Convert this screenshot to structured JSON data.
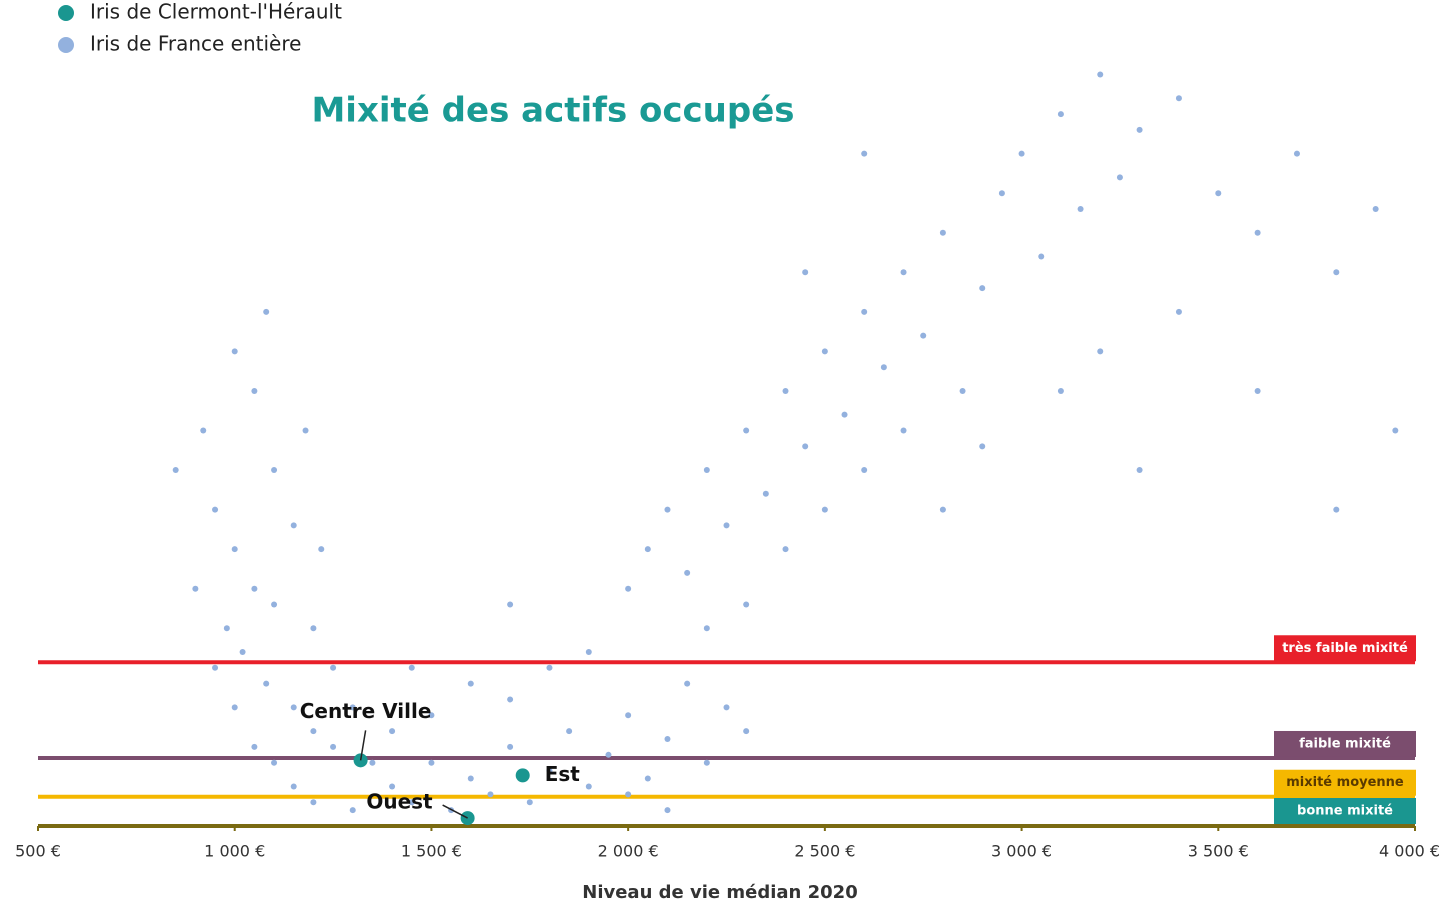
{
  "chart_data": {
    "type": "scatter",
    "title": "Mixité des actifs occupés",
    "x_label": "Niveau de vie médian 2020",
    "xlim": [
      500,
      4000
    ],
    "ylim": [
      0,
      100
    ],
    "xticks": [
      {
        "value": 500,
        "label": "500 €"
      },
      {
        "value": 1000,
        "label": "1 000 €"
      },
      {
        "value": 1500,
        "label": "1 500 €"
      },
      {
        "value": 2000,
        "label": "2 000 €"
      },
      {
        "value": 2500,
        "label": "2 500 €"
      },
      {
        "value": 3000,
        "label": "3 000 €"
      },
      {
        "value": 3500,
        "label": "3 500 €"
      },
      {
        "value": 4000,
        "label": "4 000 €"
      }
    ],
    "legend": "top-left",
    "series": [
      {
        "name": "Iris de France entière",
        "color": "#93b1de",
        "x": [
          950,
          1000,
          1050,
          1100,
          980,
          1020,
          1080,
          1150,
          1200,
          1250,
          1000,
          1050,
          1100,
          1150,
          1200,
          1300,
          1100,
          1050,
          1000,
          1150,
          1200,
          900,
          950,
          1250,
          1300,
          850,
          920,
          1180,
          1220,
          1080,
          1400,
          1450,
          1500,
          1550,
          1600,
          1650,
          1700,
          1750,
          1800,
          1850,
          1900,
          1950,
          2000,
          2050,
          2100,
          2150,
          2200,
          2250,
          2300,
          1500,
          1600,
          1700,
          1800,
          1900,
          1450,
          1350,
          1400,
          2000,
          2100,
          1700,
          2000,
          2050,
          2100,
          2150,
          2200,
          2250,
          2300,
          2350,
          2400,
          2450,
          2500,
          2550,
          2600,
          2650,
          2700,
          2750,
          2800,
          2850,
          2900,
          2950,
          2200,
          2300,
          2400,
          2500,
          2600,
          2700,
          2800,
          2900,
          2450,
          2600,
          3000,
          3050,
          3100,
          3150,
          3200,
          3250,
          3300,
          3400,
          3500,
          3600,
          3700,
          3800,
          3900,
          3950,
          3200,
          3400,
          3600,
          3800,
          3100,
          3300
        ],
        "y": [
          40,
          35,
          30,
          28,
          25,
          22,
          18,
          15,
          12,
          10,
          15,
          10,
          8,
          5,
          3,
          2,
          45,
          55,
          60,
          38,
          25,
          30,
          20,
          20,
          15,
          45,
          50,
          50,
          35,
          65,
          5,
          3,
          8,
          2,
          6,
          4,
          10,
          3,
          7,
          12,
          5,
          9,
          14,
          6,
          11,
          18,
          8,
          15,
          12,
          14,
          18,
          16,
          20,
          22,
          20,
          8,
          12,
          4,
          2,
          28,
          30,
          35,
          40,
          32,
          45,
          38,
          50,
          42,
          55,
          48,
          60,
          52,
          65,
          58,
          70,
          62,
          75,
          55,
          68,
          80,
          25,
          28,
          35,
          40,
          45,
          50,
          40,
          48,
          70,
          85,
          85,
          72,
          90,
          78,
          95,
          82,
          88,
          92,
          80,
          75,
          85,
          70,
          78,
          50,
          60,
          65,
          55,
          40,
          55,
          45
        ]
      },
      {
        "name": "Iris de Clermont-l'Hérault",
        "color": "#1a9690",
        "x": [
          1320,
          1732,
          1592
        ],
        "y": [
          8.3,
          6.4,
          1.0
        ],
        "labels": [
          "Centre Ville",
          "Est",
          "Ouest"
        ]
      }
    ],
    "thresholds": [
      {
        "label": "très faible mixité",
        "value": 20.7,
        "color": "#e8202a",
        "box_color": "#e8202a"
      },
      {
        "label": "faible mixité",
        "value": 8.6,
        "color": "#7b4d6e",
        "box_color": "#7b4d6e"
      },
      {
        "label": "mixité moyenne",
        "value": 3.7,
        "color": "#f5b800",
        "box_color": "#f5b800"
      },
      {
        "label": "bonne mixité",
        "value": 0,
        "color": "#7a6a12",
        "box_color": "#1a9690"
      }
    ]
  }
}
